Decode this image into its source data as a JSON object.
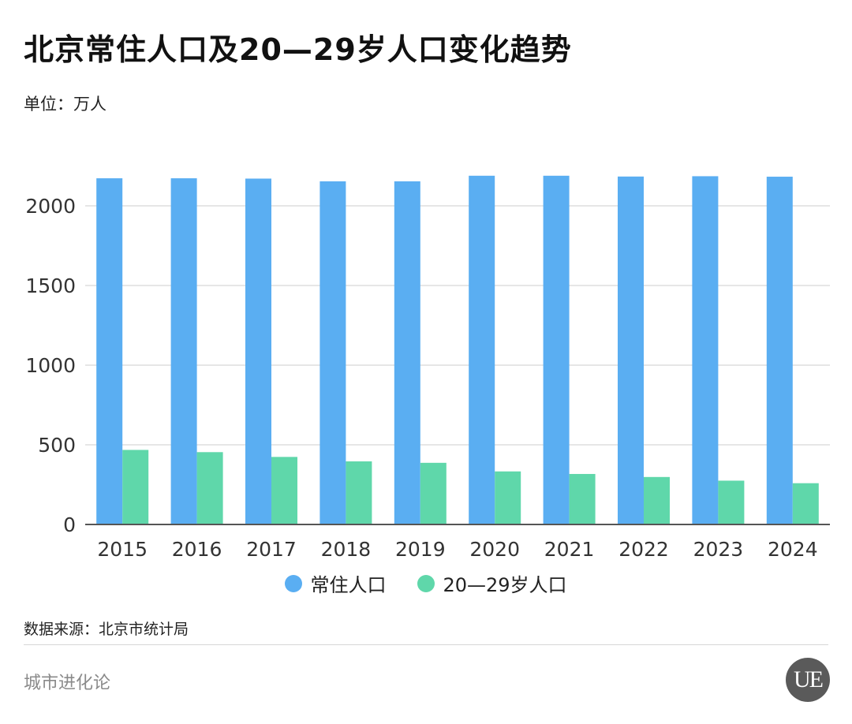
{
  "title": "北京常住人口及20—29岁人口变化趋势",
  "unit_label": "单位：万人",
  "source": "数据来源：北京市统计局",
  "brand": "城市进化论",
  "logo_text": "UE",
  "colors": {
    "series1": "#5aaef2",
    "series2": "#5fd7aa",
    "grid": "#dddddd",
    "axis": "#555555"
  },
  "chart_data": {
    "type": "bar",
    "categories": [
      "2015",
      "2016",
      "2017",
      "2018",
      "2019",
      "2020",
      "2021",
      "2022",
      "2023",
      "2024"
    ],
    "series": [
      {
        "name": "常住人口",
        "values": [
          2173,
          2173,
          2171,
          2154,
          2154,
          2189,
          2189,
          2184,
          2186,
          2183
        ]
      },
      {
        "name": "20—29岁人口",
        "values": [
          468,
          454,
          424,
          396,
          387,
          333,
          317,
          298,
          275,
          259
        ]
      }
    ],
    "yticks": [
      0,
      500,
      1000,
      1500,
      2000
    ],
    "ylim": [
      0,
      2200
    ],
    "grid": true,
    "legend": "bottom"
  }
}
